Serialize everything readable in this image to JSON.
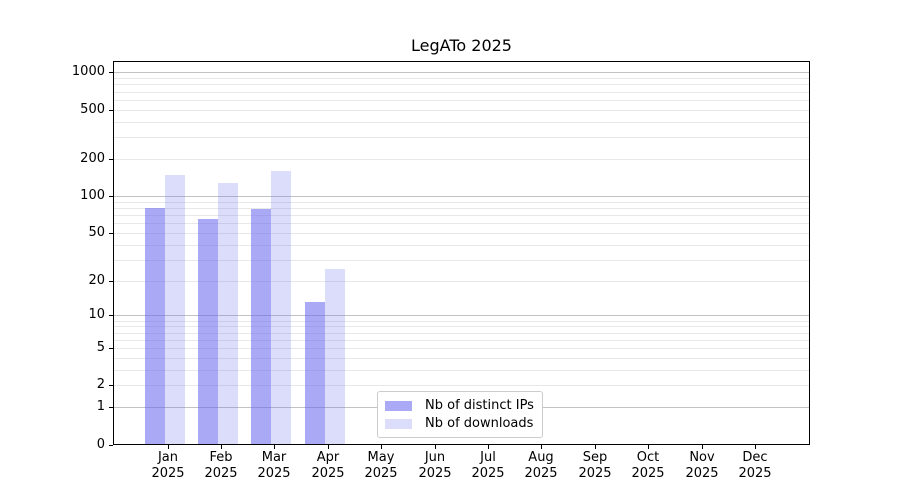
{
  "chart_data": {
    "type": "bar",
    "title": "LegATo 2025",
    "categories": [
      "Jan 2025",
      "Feb 2025",
      "Mar 2025",
      "Apr 2025",
      "May 2025",
      "Jun 2025",
      "Jul 2025",
      "Aug 2025",
      "Sep 2025",
      "Oct 2025",
      "Nov 2025",
      "Dec 2025"
    ],
    "series": [
      {
        "name": "Nb of distinct IPs",
        "fill": "rgba(102,102,238,0.56)",
        "values": [
          80,
          65,
          78,
          13,
          null,
          null,
          null,
          null,
          null,
          null,
          null,
          null
        ]
      },
      {
        "name": "Nb of downloads",
        "fill": "rgba(102,102,238,0.23)",
        "values": [
          147,
          128,
          160,
          25,
          null,
          null,
          null,
          null,
          null,
          null,
          null,
          null
        ]
      }
    ],
    "y_axis": {
      "scale": "log1p",
      "tick_values": [
        0,
        1,
        2,
        5,
        10,
        20,
        50,
        100,
        200,
        500,
        1000
      ],
      "major_gridlines": [
        1,
        10,
        100,
        1000
      ],
      "minor_gridlines": [
        2,
        3,
        4,
        5,
        6,
        7,
        8,
        9,
        20,
        30,
        40,
        50,
        60,
        70,
        80,
        90,
        200,
        300,
        400,
        500,
        600,
        700,
        800,
        900
      ],
      "ylim": [
        0,
        1237
      ]
    },
    "xlabel": "",
    "ylabel": "",
    "grid": "on",
    "legend": {
      "position": "lower center",
      "entries": [
        "Nb of distinct IPs",
        "Nb of downloads"
      ]
    }
  },
  "colors": {
    "bar_base": "#6666ee",
    "grid_major": "#c2c2c2",
    "grid_minor": "#e8e8e8",
    "axis": "#000000",
    "legend_border": "#cccccc",
    "background": "#ffffff"
  }
}
